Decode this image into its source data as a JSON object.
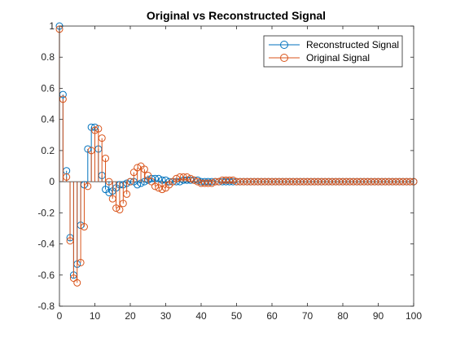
{
  "chart_data": {
    "type": "stem",
    "title": "Original vs Reconstructed Signal",
    "xlabel": "",
    "ylabel": "",
    "xlim": [
      0,
      100
    ],
    "ylim": [
      -0.8,
      1.0
    ],
    "x_ticks": [
      0,
      10,
      20,
      30,
      40,
      50,
      60,
      70,
      80,
      90,
      100
    ],
    "y_ticks": [
      -0.8,
      -0.6,
      -0.4,
      -0.2,
      0,
      0.2,
      0.4,
      0.6,
      0.8,
      1
    ],
    "grid": false,
    "legend_position": "top-right",
    "series": [
      {
        "name": "Reconstructed Signal",
        "color": "#0072BD",
        "x": [
          0,
          1,
          2,
          3,
          4,
          5,
          6,
          7,
          8,
          9,
          10,
          11,
          12,
          13,
          14,
          15,
          16,
          17,
          18,
          19,
          20,
          21,
          22,
          23,
          24,
          25,
          26,
          27,
          28,
          29,
          30,
          31,
          32,
          33,
          34,
          35,
          36,
          37,
          38,
          39,
          40,
          41,
          42,
          43,
          44,
          45,
          46,
          47,
          48,
          49,
          50,
          51,
          52,
          53,
          54,
          55,
          56,
          57,
          58,
          59,
          60,
          61,
          62,
          63,
          64,
          65,
          66,
          67,
          68,
          69,
          70,
          71,
          72,
          73,
          74,
          75,
          76,
          77,
          78,
          79,
          80,
          81,
          82,
          83,
          84,
          85,
          86,
          87,
          88,
          89,
          90,
          91,
          92,
          93,
          94,
          95,
          96,
          97,
          98,
          99,
          100
        ],
        "y": [
          1.0,
          0.56,
          0.07,
          -0.36,
          -0.6,
          -0.53,
          -0.28,
          -0.02,
          0.21,
          0.35,
          0.35,
          0.21,
          0.04,
          -0.05,
          -0.07,
          -0.06,
          -0.04,
          -0.02,
          -0.02,
          -0.01,
          0.0,
          0.0,
          -0.02,
          -0.01,
          0.0,
          0.01,
          0.02,
          0.02,
          0.02,
          0.01,
          0.01,
          0.0,
          0.0,
          0.0,
          0.0,
          0.01,
          0.01,
          0.01,
          0.01,
          0.01,
          0.0,
          0.0,
          0.0,
          0.0,
          0.0,
          0.0,
          0.0,
          0.0,
          0.0,
          0.0,
          0.0,
          0.0,
          0.0,
          0.0,
          0.0,
          0.0,
          0.0,
          0.0,
          0.0,
          0.0,
          0.0,
          0.0,
          0.0,
          0.0,
          0.0,
          0.0,
          0.0,
          0.0,
          0.0,
          0.0,
          0.0,
          0.0,
          0.0,
          0.0,
          0.0,
          0.0,
          0.0,
          0.0,
          0.0,
          0.0,
          0.0,
          0.0,
          0.0,
          0.0,
          0.0,
          0.0,
          0.0,
          0.0,
          0.0,
          0.0,
          0.0,
          0.0,
          0.0,
          0.0,
          0.0,
          0.0,
          0.0,
          0.0,
          0.0,
          0.0,
          0.0
        ]
      },
      {
        "name": "Original Signal",
        "color": "#D95319",
        "x": [
          0,
          1,
          2,
          3,
          4,
          5,
          6,
          7,
          8,
          9,
          10,
          11,
          12,
          13,
          14,
          15,
          16,
          17,
          18,
          19,
          20,
          21,
          22,
          23,
          24,
          25,
          26,
          27,
          28,
          29,
          30,
          31,
          32,
          33,
          34,
          35,
          36,
          37,
          38,
          39,
          40,
          41,
          42,
          43,
          44,
          45,
          46,
          47,
          48,
          49,
          50,
          51,
          52,
          53,
          54,
          55,
          56,
          57,
          58,
          59,
          60,
          61,
          62,
          63,
          64,
          65,
          66,
          67,
          68,
          69,
          70,
          71,
          72,
          73,
          74,
          75,
          76,
          77,
          78,
          79,
          80,
          81,
          82,
          83,
          84,
          85,
          86,
          87,
          88,
          89,
          90,
          91,
          92,
          93,
          94,
          95,
          96,
          97,
          98,
          99,
          100
        ],
        "y": [
          0.98,
          0.53,
          0.03,
          -0.38,
          -0.62,
          -0.65,
          -0.52,
          -0.29,
          -0.03,
          0.2,
          0.33,
          0.34,
          0.28,
          0.15,
          0.0,
          -0.11,
          -0.17,
          -0.18,
          -0.14,
          -0.08,
          0.0,
          0.06,
          0.09,
          0.1,
          0.08,
          0.04,
          0.0,
          -0.03,
          -0.04,
          -0.05,
          -0.04,
          -0.02,
          0.0,
          0.02,
          0.03,
          0.03,
          0.03,
          0.02,
          0.01,
          0.0,
          -0.01,
          -0.01,
          -0.01,
          -0.01,
          0.0,
          0.0,
          0.01,
          0.01,
          0.01,
          0.01,
          0.0,
          0.0,
          0.0,
          0.0,
          0.0,
          0.0,
          0.0,
          0.0,
          0.0,
          0.0,
          0.0,
          0.0,
          0.0,
          0.0,
          0.0,
          0.0,
          0.0,
          0.0,
          0.0,
          0.0,
          0.0,
          0.0,
          0.0,
          0.0,
          0.0,
          0.0,
          0.0,
          0.0,
          0.0,
          0.0,
          0.0,
          0.0,
          0.0,
          0.0,
          0.0,
          0.0,
          0.0,
          0.0,
          0.0,
          0.0,
          0.0,
          0.0,
          0.0,
          0.0,
          0.0,
          0.0,
          0.0,
          0.0,
          0.0,
          0.0,
          0.0
        ]
      }
    ]
  }
}
